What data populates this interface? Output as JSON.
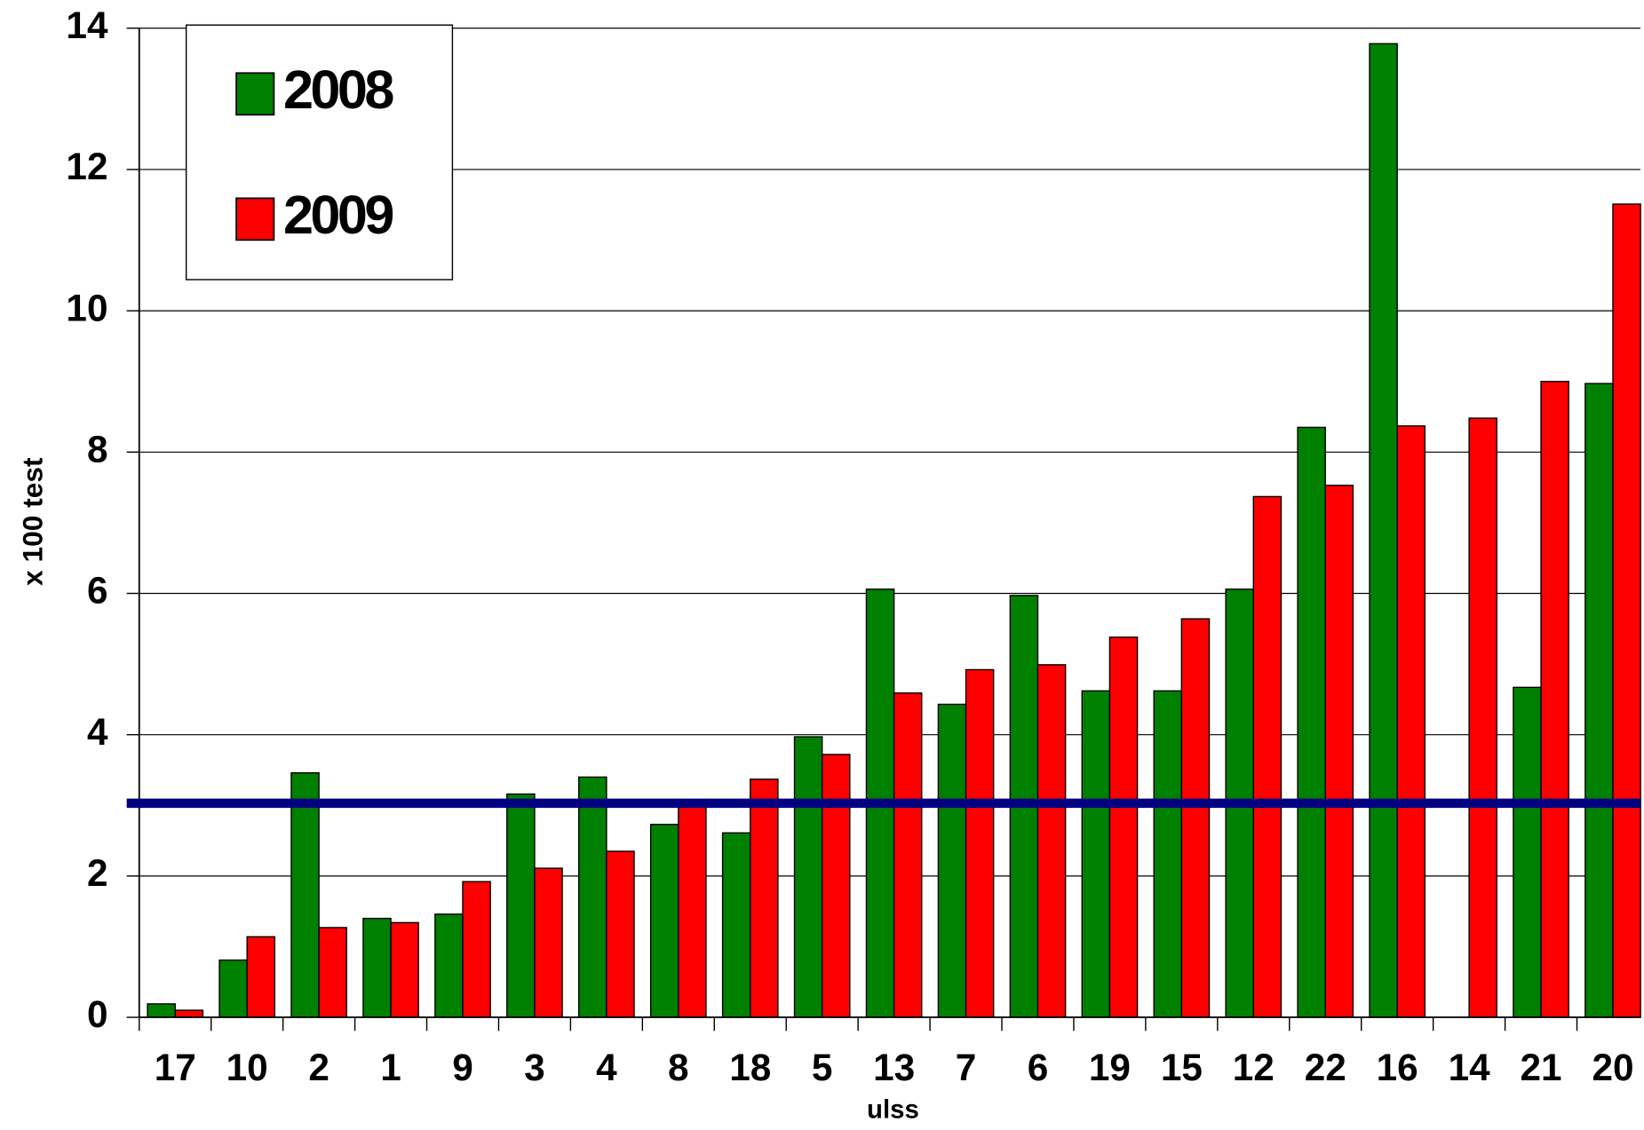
{
  "chart_data": {
    "type": "bar",
    "x_label": "ulss",
    "y_label": "x 100 test",
    "categories": [
      "17",
      "10",
      "2",
      "1",
      "9",
      "3",
      "4",
      "8",
      "18",
      "5",
      "13",
      "7",
      "6",
      "19",
      "15",
      "12",
      "22",
      "16",
      "14",
      "21",
      "20"
    ],
    "series": [
      {
        "name": "2008",
        "color": "#008000",
        "values": [
          0.19,
          0.81,
          3.46,
          1.4,
          1.46,
          3.16,
          3.4,
          2.73,
          2.61,
          3.97,
          6.06,
          4.43,
          5.97,
          4.62,
          4.62,
          6.06,
          8.35,
          13.78,
          null,
          4.67,
          8.97
        ]
      },
      {
        "name": "2009",
        "color": "#ff0000",
        "values": [
          0.1,
          1.14,
          1.27,
          1.34,
          1.92,
          2.11,
          2.35,
          3.03,
          3.37,
          3.72,
          4.59,
          4.92,
          4.99,
          5.38,
          5.64,
          7.37,
          7.53,
          8.37,
          8.48,
          9.0,
          11.51
        ]
      }
    ],
    "reference_line": {
      "value": 3.03,
      "color": "#000080"
    },
    "ylim": [
      0,
      14
    ],
    "yticks": [
      0,
      2,
      4,
      6,
      8,
      10,
      12,
      14
    ],
    "grid": true,
    "legend": "top-left"
  }
}
